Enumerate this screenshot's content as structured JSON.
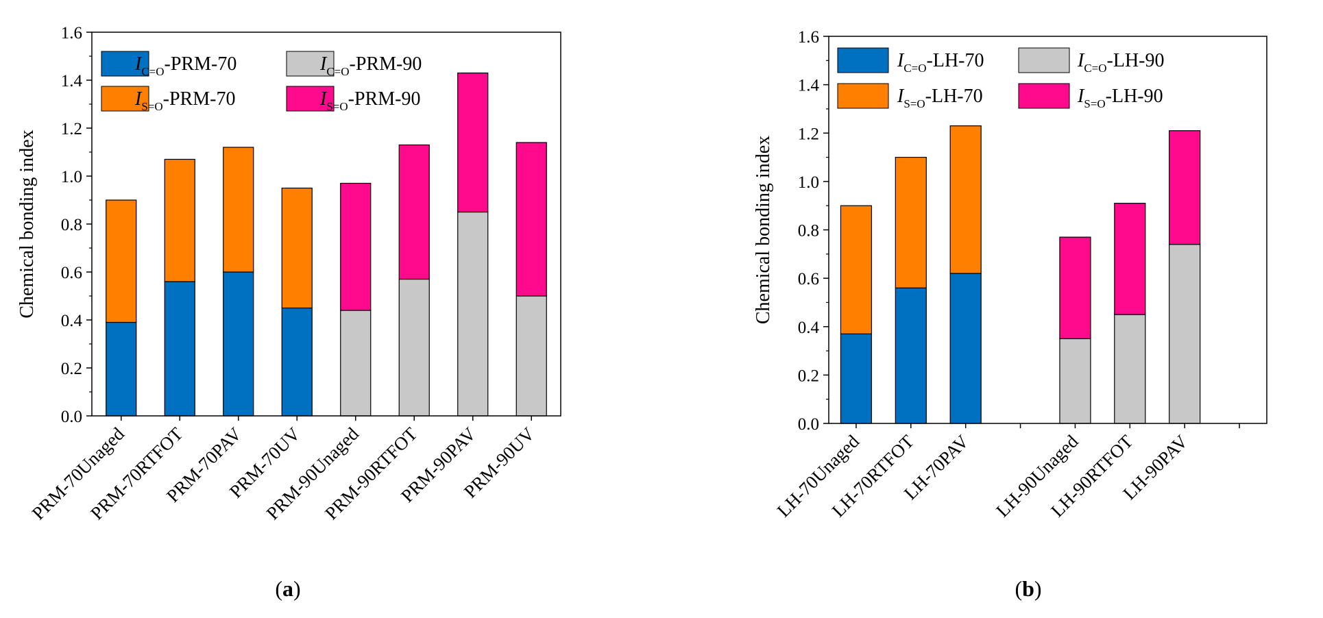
{
  "colors": {
    "c_70": "#0070c0",
    "s_70": "#ff8000",
    "c_90": "#c8c8c8",
    "s_90": "#ff0a8c"
  },
  "chart_data": [
    {
      "type": "bar",
      "stacked": true,
      "panel_label": "a",
      "title": "",
      "xlabel": "",
      "ylabel": "Chemical bonding index",
      "ylim": [
        0,
        1.6
      ],
      "yticks": [
        "0.0",
        "0.2",
        "0.4",
        "0.6",
        "0.8",
        "1.0",
        "1.2",
        "1.4",
        "1.6"
      ],
      "categories": [
        "PRM-70Unaged",
        "PRM-70RTFOT",
        "PRM-70PAV",
        "PRM-70UV",
        "PRM-90Unaged",
        "PRM-90RTFOT",
        "PRM-90PAV",
        "PRM-90UV"
      ],
      "legend_position": "top-left",
      "series": [
        {
          "name": "IC=O-PRM-70",
          "italic": "I",
          "sub": "C=O",
          "suffix": "-PRM-70",
          "color_key": "c_70",
          "values": [
            0.39,
            0.56,
            0.6,
            0.45,
            null,
            null,
            null,
            null
          ]
        },
        {
          "name": "IS=O-PRM-70",
          "italic": "I",
          "sub": "S=O",
          "suffix": "-PRM-70",
          "color_key": "s_70",
          "values": [
            0.51,
            0.51,
            0.52,
            0.5,
            null,
            null,
            null,
            null
          ]
        },
        {
          "name": "IC=O-PRM-90",
          "italic": "I",
          "sub": "C=O",
          "suffix": "-PRM-90",
          "color_key": "c_90",
          "values": [
            null,
            null,
            null,
            null,
            0.44,
            0.57,
            0.85,
            0.5
          ]
        },
        {
          "name": "IS=O-PRM-90",
          "italic": "I",
          "sub": "S=O",
          "suffix": "-PRM-90",
          "color_key": "s_90",
          "values": [
            null,
            null,
            null,
            null,
            0.53,
            0.56,
            0.58,
            0.64
          ]
        }
      ]
    },
    {
      "type": "bar",
      "stacked": true,
      "panel_label": "b",
      "title": "",
      "xlabel": "",
      "ylabel": "Chemical bonding index",
      "ylim": [
        0,
        1.6
      ],
      "yticks": [
        "0.0",
        "0.2",
        "0.4",
        "0.6",
        "0.8",
        "1.0",
        "1.2",
        "1.4",
        "1.6"
      ],
      "categories": [
        "LH-70Unaged",
        "LH-70RTFOT",
        "LH-70PAV",
        "",
        "LH-90Unaged",
        "LH-90RTFOT",
        "LH-90PAV",
        ""
      ],
      "legend_position": "top-left",
      "series": [
        {
          "name": "IC=O-LH-70",
          "italic": "I",
          "sub": "C=O",
          "suffix": "-LH-70",
          "color_key": "c_70",
          "values": [
            0.37,
            0.56,
            0.62,
            null,
            null,
            null,
            null,
            null
          ]
        },
        {
          "name": "IS=O-LH-70",
          "italic": "I",
          "sub": "S=O",
          "suffix": "-LH-70",
          "color_key": "s_70",
          "values": [
            0.53,
            0.54,
            0.61,
            null,
            null,
            null,
            null,
            null
          ]
        },
        {
          "name": "IC=O-LH-90",
          "italic": "I",
          "sub": "C=O",
          "suffix": "-LH-90",
          "color_key": "c_90",
          "values": [
            null,
            null,
            null,
            null,
            0.35,
            0.45,
            0.74,
            null
          ]
        },
        {
          "name": "IS=O-LH-90",
          "italic": "I",
          "sub": "S=O",
          "suffix": "-LH-90",
          "color_key": "s_90",
          "values": [
            null,
            null,
            null,
            null,
            0.42,
            0.46,
            0.47,
            null
          ]
        }
      ]
    }
  ]
}
